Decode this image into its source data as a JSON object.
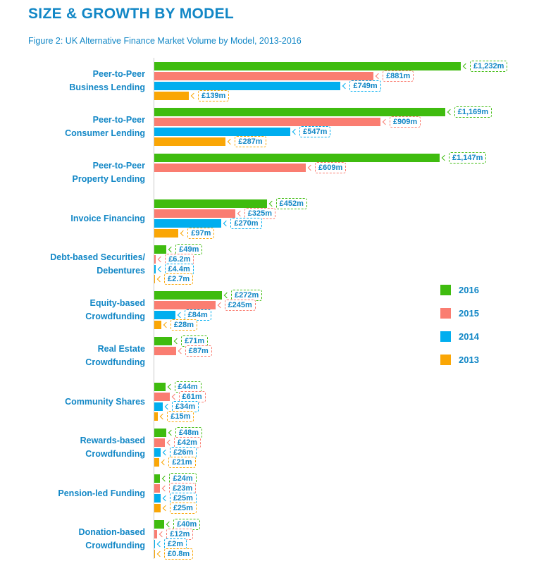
{
  "page": {
    "title": "SIZE & GROWTH BY MODEL",
    "caption": "Figure 2: UK Alternative Finance Market Volume by Model, 2013-2016"
  },
  "colors": {
    "text_blue": "#1287C6",
    "green_2016": "#3FBC0F",
    "salmon_2015": "#FA7D71",
    "blue_2014": "#00AEEF",
    "orange_2013": "#FAA605",
    "axis_gray": "#C9C9C9",
    "background": "#FFFFFF"
  },
  "legend": {
    "position": "middle-right",
    "items": [
      {
        "label": "2016",
        "color": "#3FBC0F"
      },
      {
        "label": "2015",
        "color": "#FA7D71"
      },
      {
        "label": "2014",
        "color": "#00AEEF"
      },
      {
        "label": "2013",
        "color": "#FAA605"
      }
    ]
  },
  "chart_data": {
    "type": "bar",
    "orientation": "horizontal",
    "title": "Figure 2: UK Alternative Finance Market Volume by Model, 2013-2016",
    "unit": "£m",
    "value_axis_max": 1232,
    "grid": false,
    "legend_position": "middle-right",
    "categories": [
      {
        "lines": [
          "Peer-to-Peer",
          "Business Lending"
        ]
      },
      {
        "lines": [
          "Peer-to-Peer",
          "Consumer Lending"
        ]
      },
      {
        "lines": [
          "Peer-to-Peer",
          "Property Lending"
        ]
      },
      {
        "lines": [
          "Invoice Financing"
        ]
      },
      {
        "lines": [
          "Debt-based Securities/",
          "Debentures"
        ]
      },
      {
        "lines": [
          "Equity-based",
          "Crowdfunding"
        ]
      },
      {
        "lines": [
          "Real Estate",
          "Crowdfunding"
        ]
      },
      {
        "lines": [
          "Community Shares"
        ]
      },
      {
        "lines": [
          "Rewards-based",
          "Crowdfunding"
        ]
      },
      {
        "lines": [
          "Pension-led Funding"
        ]
      },
      {
        "lines": [
          "Donation-based",
          "Crowdfunding"
        ]
      }
    ],
    "series": [
      {
        "name": "2016",
        "color": "#3FBC0F",
        "values": [
          1232,
          1169,
          1147,
          452,
          49,
          272,
          71,
          44,
          48,
          24,
          40
        ],
        "labels": [
          "£1,232m",
          "£1,169m",
          "£1,147m",
          "£452m",
          "£49m",
          "£272m",
          "£71m",
          "£44m",
          "£48m",
          "£24m",
          "£40m"
        ]
      },
      {
        "name": "2015",
        "color": "#FA7D71",
        "values": [
          881,
          909,
          609,
          325,
          6.2,
          245,
          87,
          61,
          42,
          23,
          12
        ],
        "labels": [
          "£881m",
          "£909m",
          "£609m",
          "£325m",
          "£6.2m",
          "£245m",
          "£87m",
          "£61m",
          "£42m",
          "£23m",
          "£12m"
        ]
      },
      {
        "name": "2014",
        "color": "#00AEEF",
        "values": [
          749,
          547,
          null,
          270,
          4.4,
          84,
          null,
          34,
          26,
          25,
          2
        ],
        "labels": [
          "£749m",
          "£547m",
          null,
          "£270m",
          "£4.4m",
          "£84m",
          null,
          "£34m",
          "£26m",
          "£25m",
          "£2m"
        ]
      },
      {
        "name": "2013",
        "color": "#FAA605",
        "values": [
          139,
          287,
          null,
          97,
          2.7,
          28,
          null,
          15,
          21,
          25,
          0.8
        ],
        "labels": [
          "£139m",
          "£287m",
          null,
          "£97m",
          "£2.7m",
          "£28m",
          null,
          "£15m",
          "£21m",
          "£25m",
          "£0.8m"
        ]
      }
    ]
  }
}
